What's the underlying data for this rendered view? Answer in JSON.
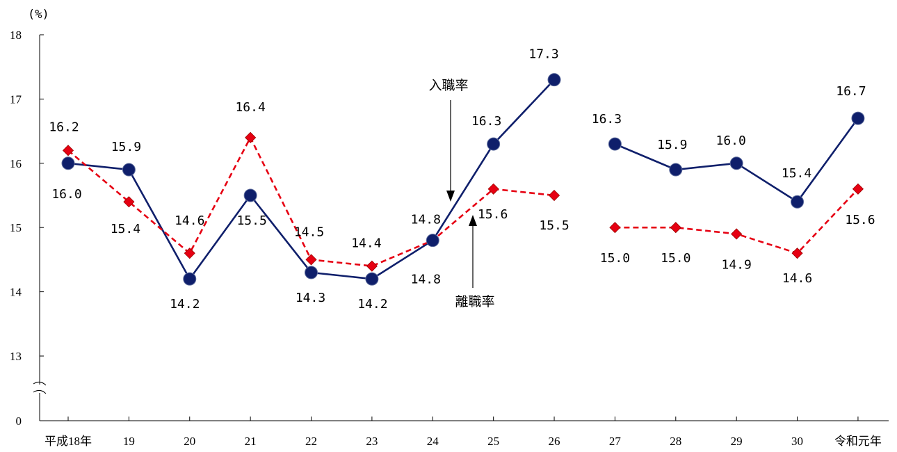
{
  "chart_data": {
    "type": "line",
    "yunit": "(%)",
    "ylim": [
      13,
      18
    ],
    "ybreak_label": "0",
    "yticks": [
      "13",
      "14",
      "15",
      "16",
      "17",
      "18"
    ],
    "categories": [
      "平成18年",
      "19",
      "20",
      "21",
      "22",
      "23",
      "24",
      "25",
      "26",
      "27",
      "28",
      "29",
      "30",
      "令和元年"
    ],
    "series": [
      {
        "name": "入職率",
        "color": "#0f1f6b",
        "marker": "circle",
        "line_style": "solid",
        "values": [
          16.0,
          15.9,
          14.2,
          15.5,
          14.3,
          14.2,
          14.8,
          16.3,
          17.3,
          16.3,
          15.9,
          16.0,
          15.4,
          16.7
        ],
        "labels": [
          "16.0",
          "15.9",
          "14.2",
          "15.5",
          "14.3",
          "14.2",
          "14.8",
          "16.3",
          "17.3",
          "16.3",
          "15.9",
          "16.0",
          "15.4",
          "16.7"
        ]
      },
      {
        "name": "離職率",
        "color": "#e60012",
        "marker": "diamond",
        "line_style": "dashed",
        "values": [
          16.2,
          15.4,
          14.6,
          16.4,
          14.5,
          14.4,
          14.8,
          15.6,
          15.5,
          15.0,
          15.0,
          14.9,
          14.6,
          15.6
        ],
        "labels": [
          "16.2",
          "15.4",
          "14.6",
          "16.4",
          "14.5",
          "14.4",
          "14.8",
          "15.6",
          "15.5",
          "15.0",
          "15.0",
          "14.9",
          "14.6",
          "15.6"
        ]
      }
    ],
    "gap_after_index": 8,
    "annotations": [
      {
        "text": "入職率",
        "series": 0
      },
      {
        "text": "離職率",
        "series": 1
      }
    ],
    "grid": false
  }
}
